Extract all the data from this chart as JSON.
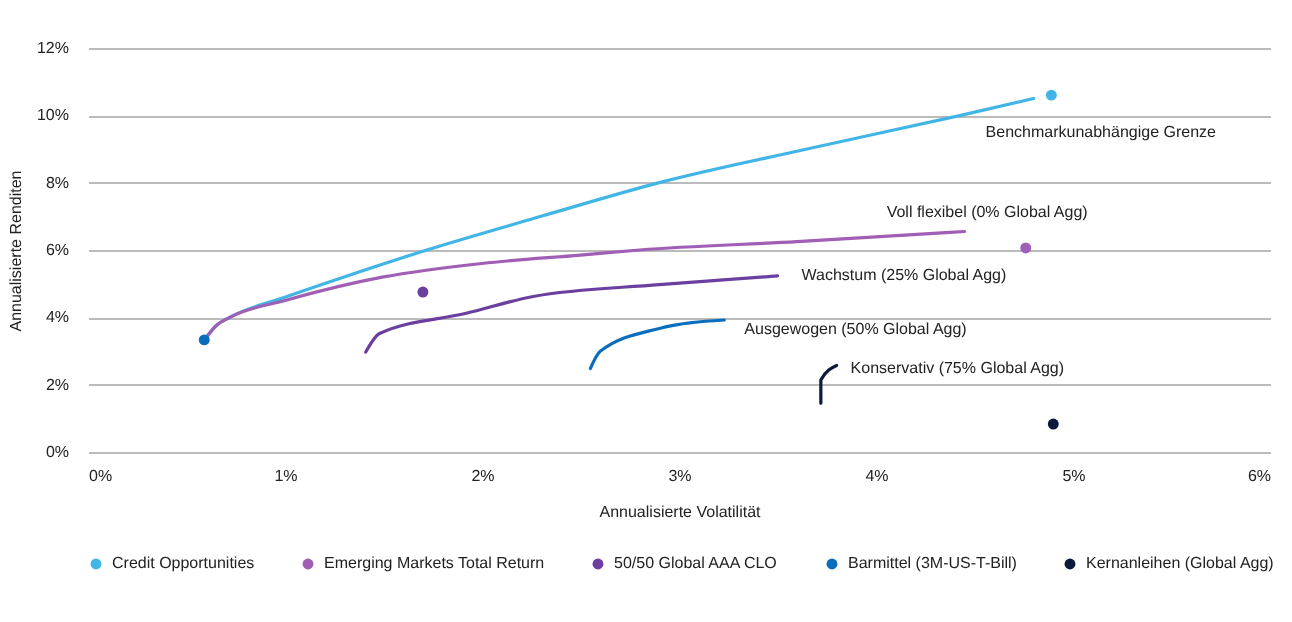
{
  "chart_data": {
    "type": "scatter",
    "xlabel": "Annualisierte Volatilität",
    "ylabel": "Annualisierte Renditen",
    "xlim": [
      0,
      6
    ],
    "xticks": [
      {
        "value": 0,
        "label": "0%"
      },
      {
        "value": 1,
        "label": "1%"
      },
      {
        "value": 2,
        "label": "2%"
      },
      {
        "value": 3,
        "label": "3%"
      },
      {
        "value": 4,
        "label": "4%"
      },
      {
        "value": 5,
        "label": "5%"
      },
      {
        "value": 6,
        "label": "6%"
      }
    ],
    "ylim": [
      0,
      12
    ],
    "yticks": [
      {
        "value": 0,
        "label": "0%"
      },
      {
        "value": 2,
        "label": "2%"
      },
      {
        "value": 4,
        "label": "4%"
      },
      {
        "value": 6,
        "label": "6%"
      },
      {
        "value": 8,
        "label": "8%"
      },
      {
        "value": 10,
        "label": "10%"
      },
      {
        "value": 12,
        "label": "12%"
      }
    ],
    "grid": "y",
    "legend": "bottom",
    "series": [
      {
        "name": "Benchmarkunabhängige Grenze",
        "type": "line",
        "marker": "none",
        "color": "#41b6e6",
        "x": [
          0.6,
          0.65,
          0.72,
          1.0,
          1.3,
          1.72,
          2.3,
          2.9,
          3.65,
          4.43,
          4.8
        ],
        "values": [
          3.4,
          3.75,
          4.0,
          4.6,
          5.2,
          6.0,
          7.0,
          8.0,
          9.0,
          10.0,
          10.5
        ]
      },
      {
        "name": "Voll flexibel (0% Global Agg)",
        "type": "line",
        "marker": "none",
        "color": "#a05eb5",
        "x": [
          0.6,
          0.65,
          0.72,
          1.0,
          1.5,
          2.0,
          2.5,
          2.8,
          3.6,
          4.45
        ],
        "values": [
          3.4,
          3.75,
          4.0,
          4.5,
          5.2,
          5.6,
          5.85,
          6.0,
          6.25,
          6.55
        ]
      },
      {
        "name": "Wachstum (25% Global Agg)",
        "type": "line",
        "marker": "none",
        "color": "#6b3fa0",
        "x": [
          1.41,
          1.48,
          1.92,
          2.26,
          2.9,
          3.5
        ],
        "values": [
          2.97,
          3.52,
          4.12,
          4.62,
          4.97,
          5.23
        ]
      },
      {
        "name": "Ausgewogen (50% Global Agg)",
        "type": "line",
        "marker": "none",
        "color": "#0a6ebd",
        "x": [
          2.55,
          2.6,
          2.9,
          3.23
        ],
        "values": [
          2.48,
          2.99,
          3.67,
          3.92
        ]
      },
      {
        "name": "Konservativ (75% Global Agg)",
        "type": "line",
        "marker": "none",
        "color": "#0c1a3c",
        "x": [
          3.72,
          3.72,
          3.8
        ],
        "values": [
          1.45,
          2.14,
          2.57
        ]
      },
      {
        "name": "Credit Opportunities",
        "type": "scatter",
        "marker": "circle",
        "color": "#41b6e6",
        "x": [
          4.89
        ],
        "values": [
          10.6
        ]
      },
      {
        "name": "Emerging Markets Total Return",
        "type": "scatter",
        "marker": "circle",
        "color": "#a05eb5",
        "x": [
          4.76
        ],
        "values": [
          6.06
        ]
      },
      {
        "name": "50/50 Global AAA CLO",
        "type": "scatter",
        "marker": "circle",
        "color": "#6b3fa0",
        "x": [
          1.7
        ],
        "values": [
          4.75
        ]
      },
      {
        "name": "Barmittel (3M-US-T-Bill)",
        "type": "scatter",
        "marker": "circle",
        "color": "#0a6ebd",
        "x": [
          0.59
        ],
        "values": [
          3.33
        ]
      },
      {
        "name": "Kernanleihen (Global Agg)",
        "type": "scatter",
        "marker": "circle",
        "color": "#0c1a3c",
        "x": [
          4.9
        ],
        "values": [
          0.83
        ]
      }
    ]
  }
}
